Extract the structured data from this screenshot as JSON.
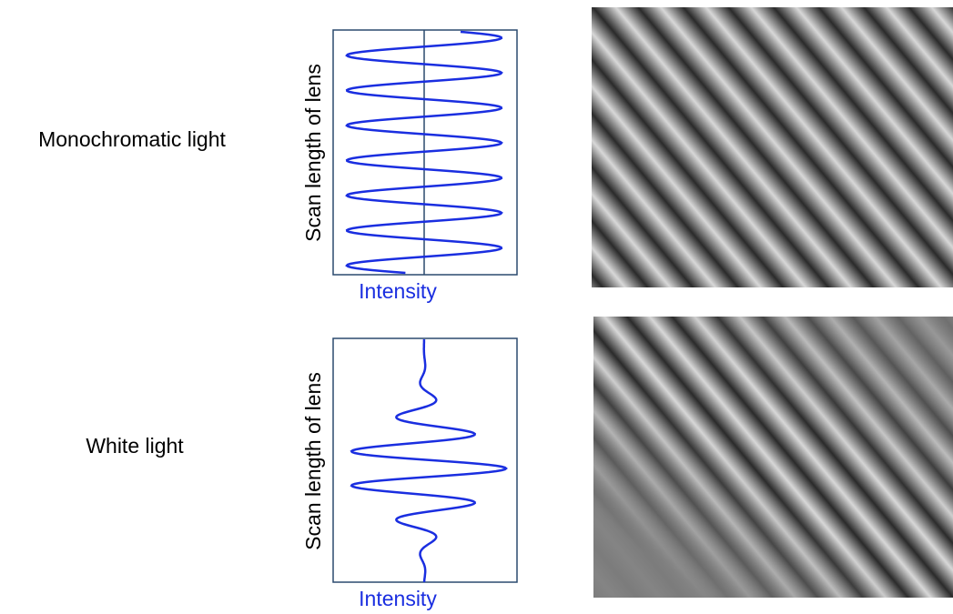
{
  "rows": [
    {
      "label": "Monochromatic light",
      "plot": {
        "y_label": "Scan length of lens",
        "x_label": "Intensity"
      }
    },
    {
      "label": "White light",
      "plot": {
        "y_label": "Scan length of lens",
        "x_label": "Intensity"
      }
    }
  ]
}
